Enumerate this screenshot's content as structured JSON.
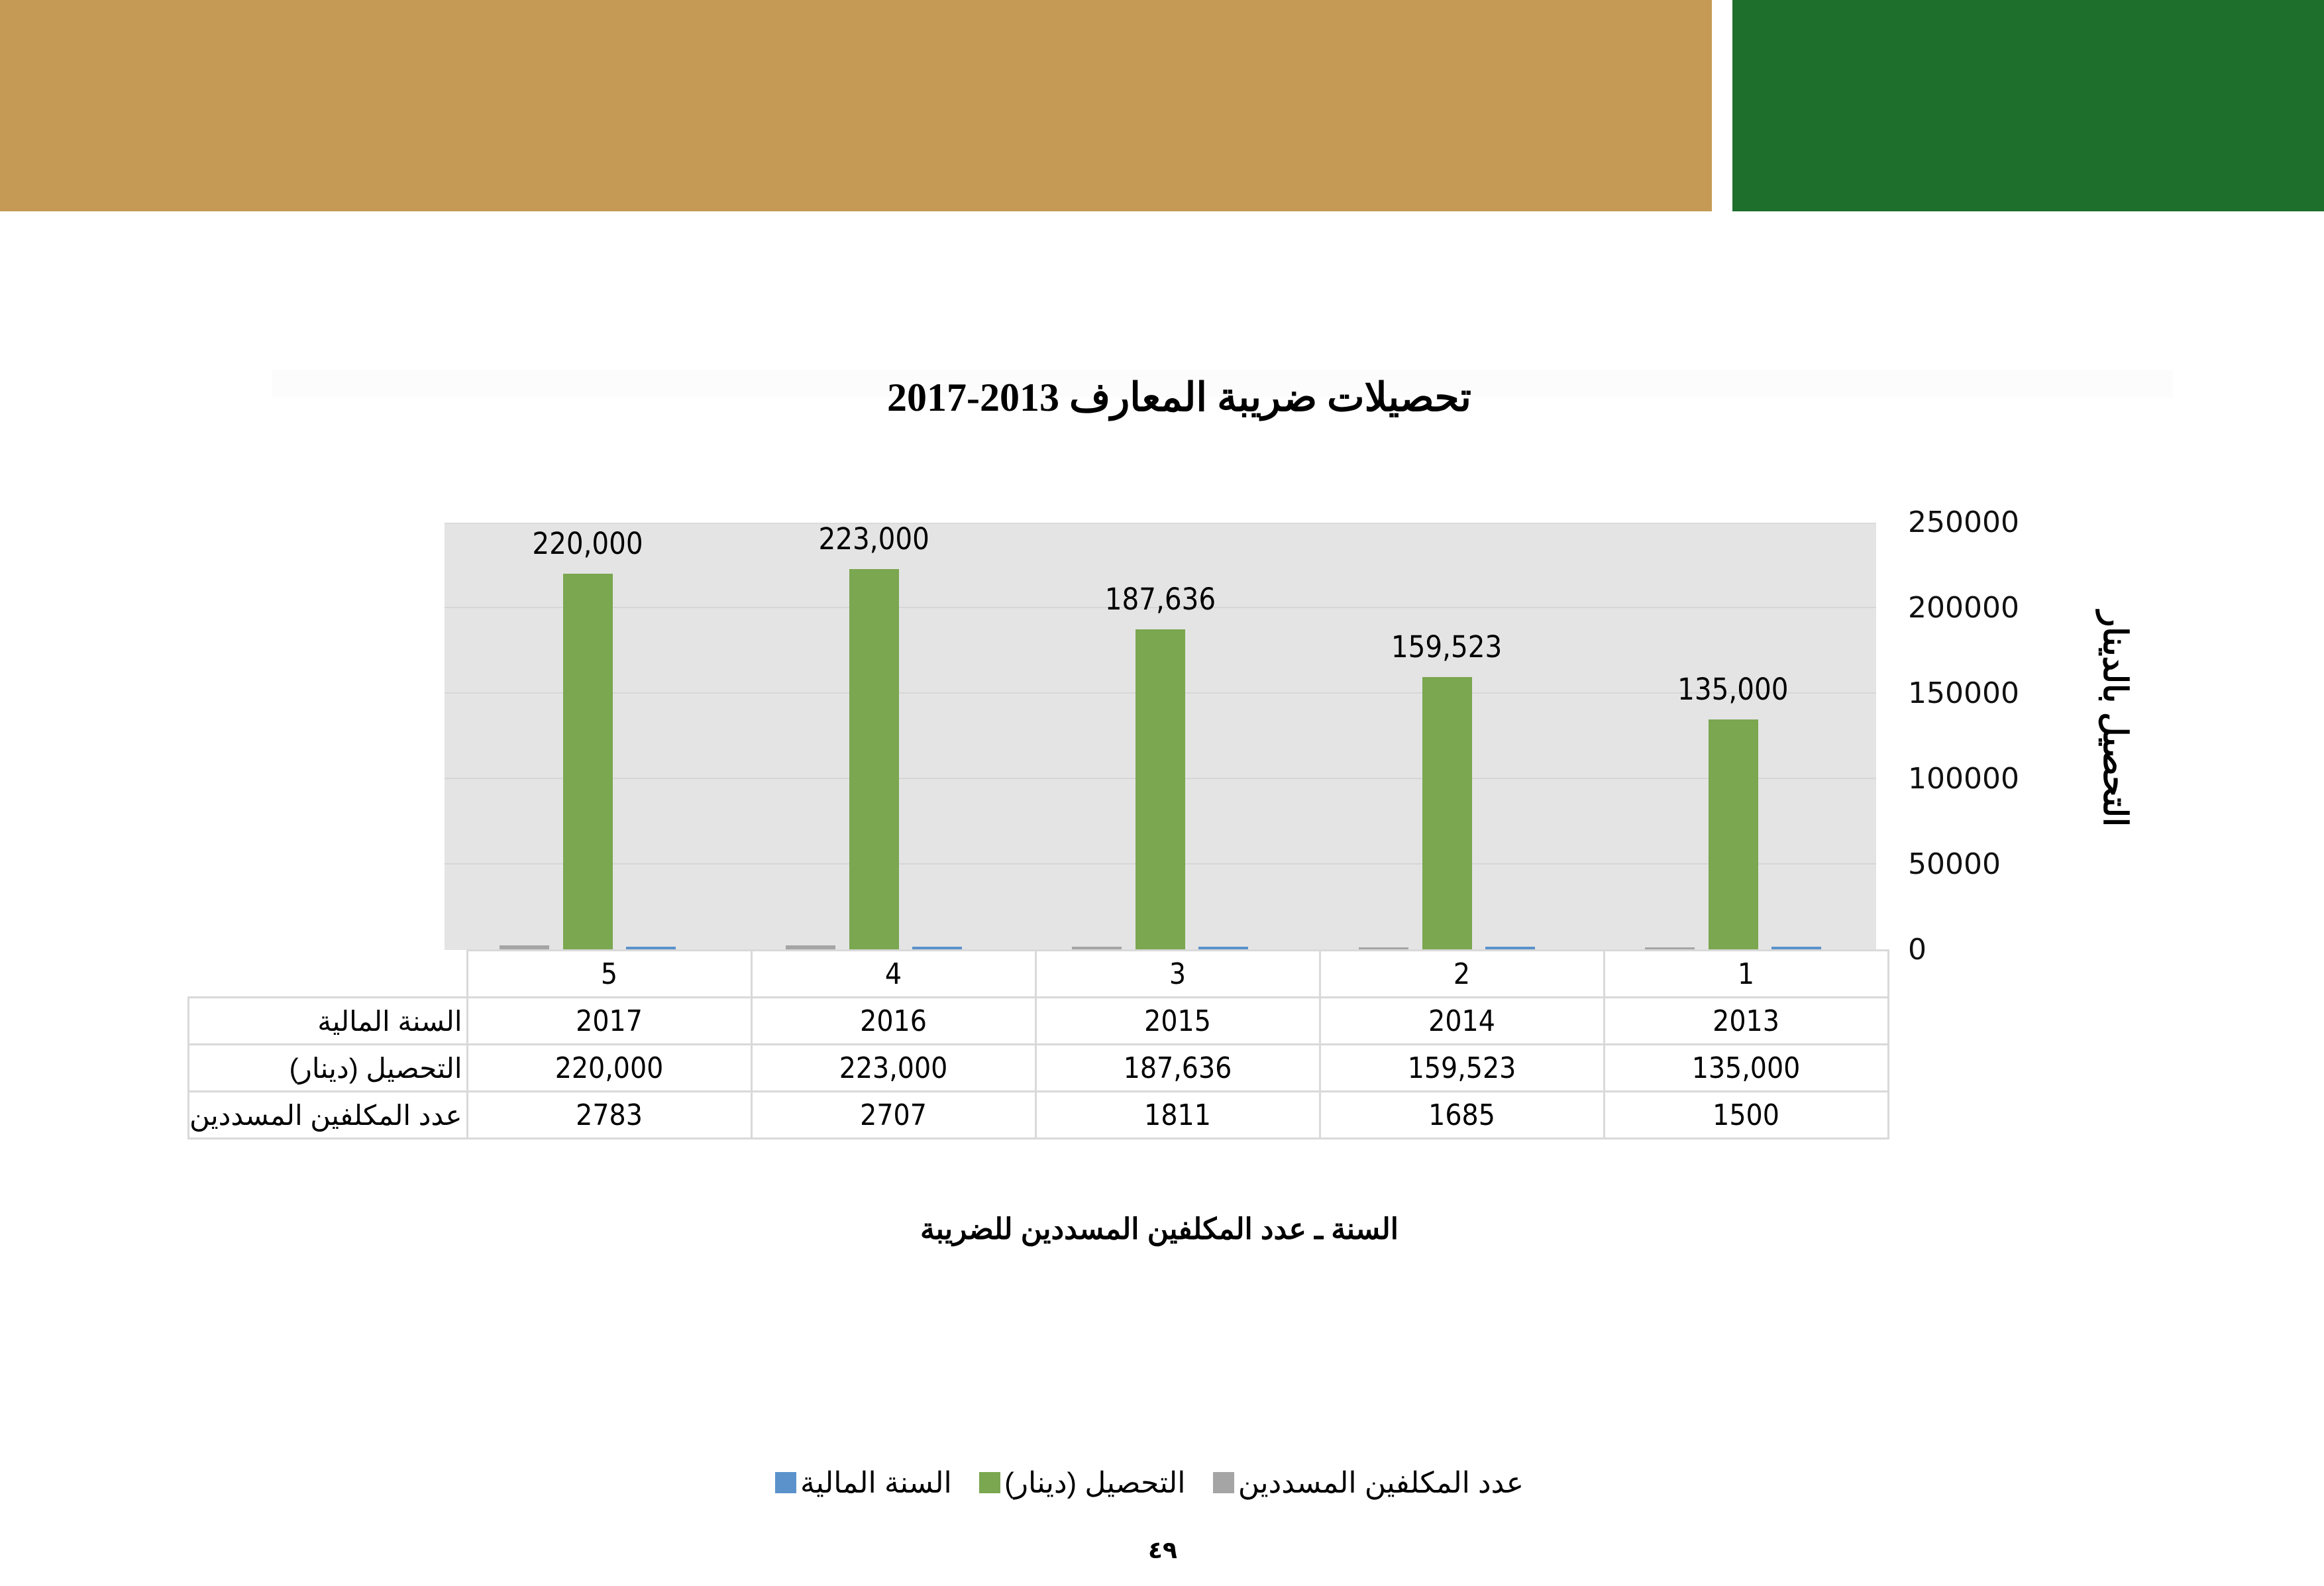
{
  "header": {
    "band_left_color": "#c59a54",
    "band_right_color": "#1e6f2c"
  },
  "title": "تحصيلات ضريبة المعارف 2013-2017",
  "page_number": "٤٩",
  "chart_data": {
    "type": "bar",
    "title": "تحصيلات ضريبة المعارف 2013-2017",
    "xlabel": "السنة  ـ عدد المكلفين المسددين للضريبة",
    "ylabel": "التحصيل بالدينار",
    "ylim": [
      0,
      250000
    ],
    "yticks": [
      "250000",
      "200000",
      "150000",
      "100000",
      "50000",
      "0"
    ],
    "grid": true,
    "legend_position": "bottom",
    "categories": [
      "5",
      "4",
      "3",
      "2",
      "1"
    ],
    "series": [
      {
        "name": "عدد المكلفين المسددين",
        "color": "#a5a5a5",
        "values": [
          2783,
          2707,
          1811,
          1685,
          1500
        ]
      },
      {
        "name": "التحصيل (دينار)",
        "color": "#7aa74f",
        "values": [
          220000,
          223000,
          187636,
          159523,
          135000
        ],
        "labels": [
          "220,000",
          "223,000",
          "187,636",
          "159,523",
          "135,000"
        ]
      },
      {
        "name": "السنة المالية",
        "color": "#5b92cb",
        "values": [
          2017,
          2016,
          2015,
          2014,
          2013
        ]
      }
    ]
  },
  "table": {
    "header": [
      "5",
      "4",
      "3",
      "2",
      "1"
    ],
    "rows": [
      {
        "label": "السنة المالية",
        "cells": [
          "2017",
          "2016",
          "2015",
          "2014",
          "2013"
        ]
      },
      {
        "label": "التحصيل (دينار)",
        "cells": [
          "220,000",
          "223,000",
          "187,636",
          "159,523",
          "135,000"
        ]
      },
      {
        "label": "عدد المكلفين المسددين",
        "cells": [
          "2783",
          "2707",
          "1811",
          "1685",
          "1500"
        ]
      }
    ]
  },
  "legend": [
    {
      "label": "عدد المكلفين المسددين",
      "color": "#a5a5a5"
    },
    {
      "label": "التحصيل (دينار)",
      "color": "#7aa74f"
    },
    {
      "label": "السنة المالية",
      "color": "#5b92cb"
    }
  ]
}
